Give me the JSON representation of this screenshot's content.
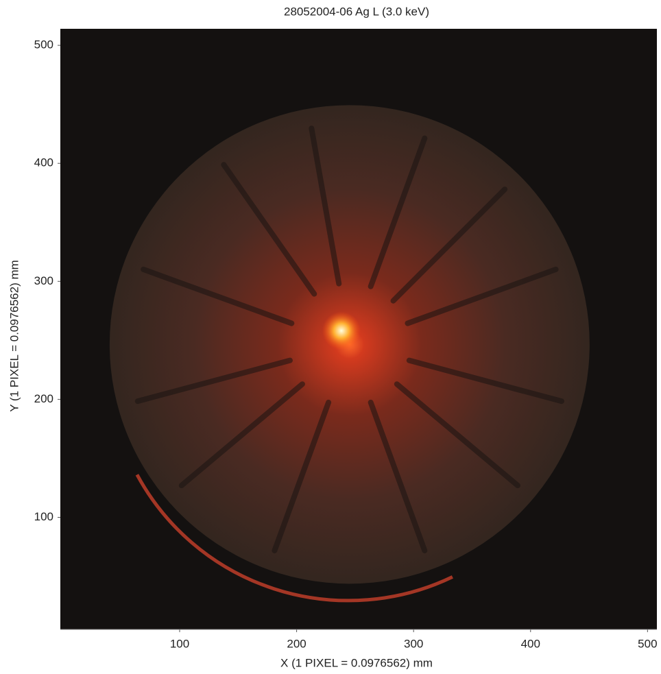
{
  "chart_data": {
    "type": "image",
    "title": "28052004-06 Ag L (3.0 keV)",
    "x_label": "X (1 PIXEL = 0.0976562) mm",
    "y_label": "Y (1 PIXEL = 0.0976562) mm",
    "xlim": [
      -2,
      508
    ],
    "ylim": [
      5,
      514
    ],
    "xticks": [
      100,
      200,
      300,
      400,
      500
    ],
    "yticks": [
      100,
      200,
      300,
      400,
      500
    ]
  }
}
